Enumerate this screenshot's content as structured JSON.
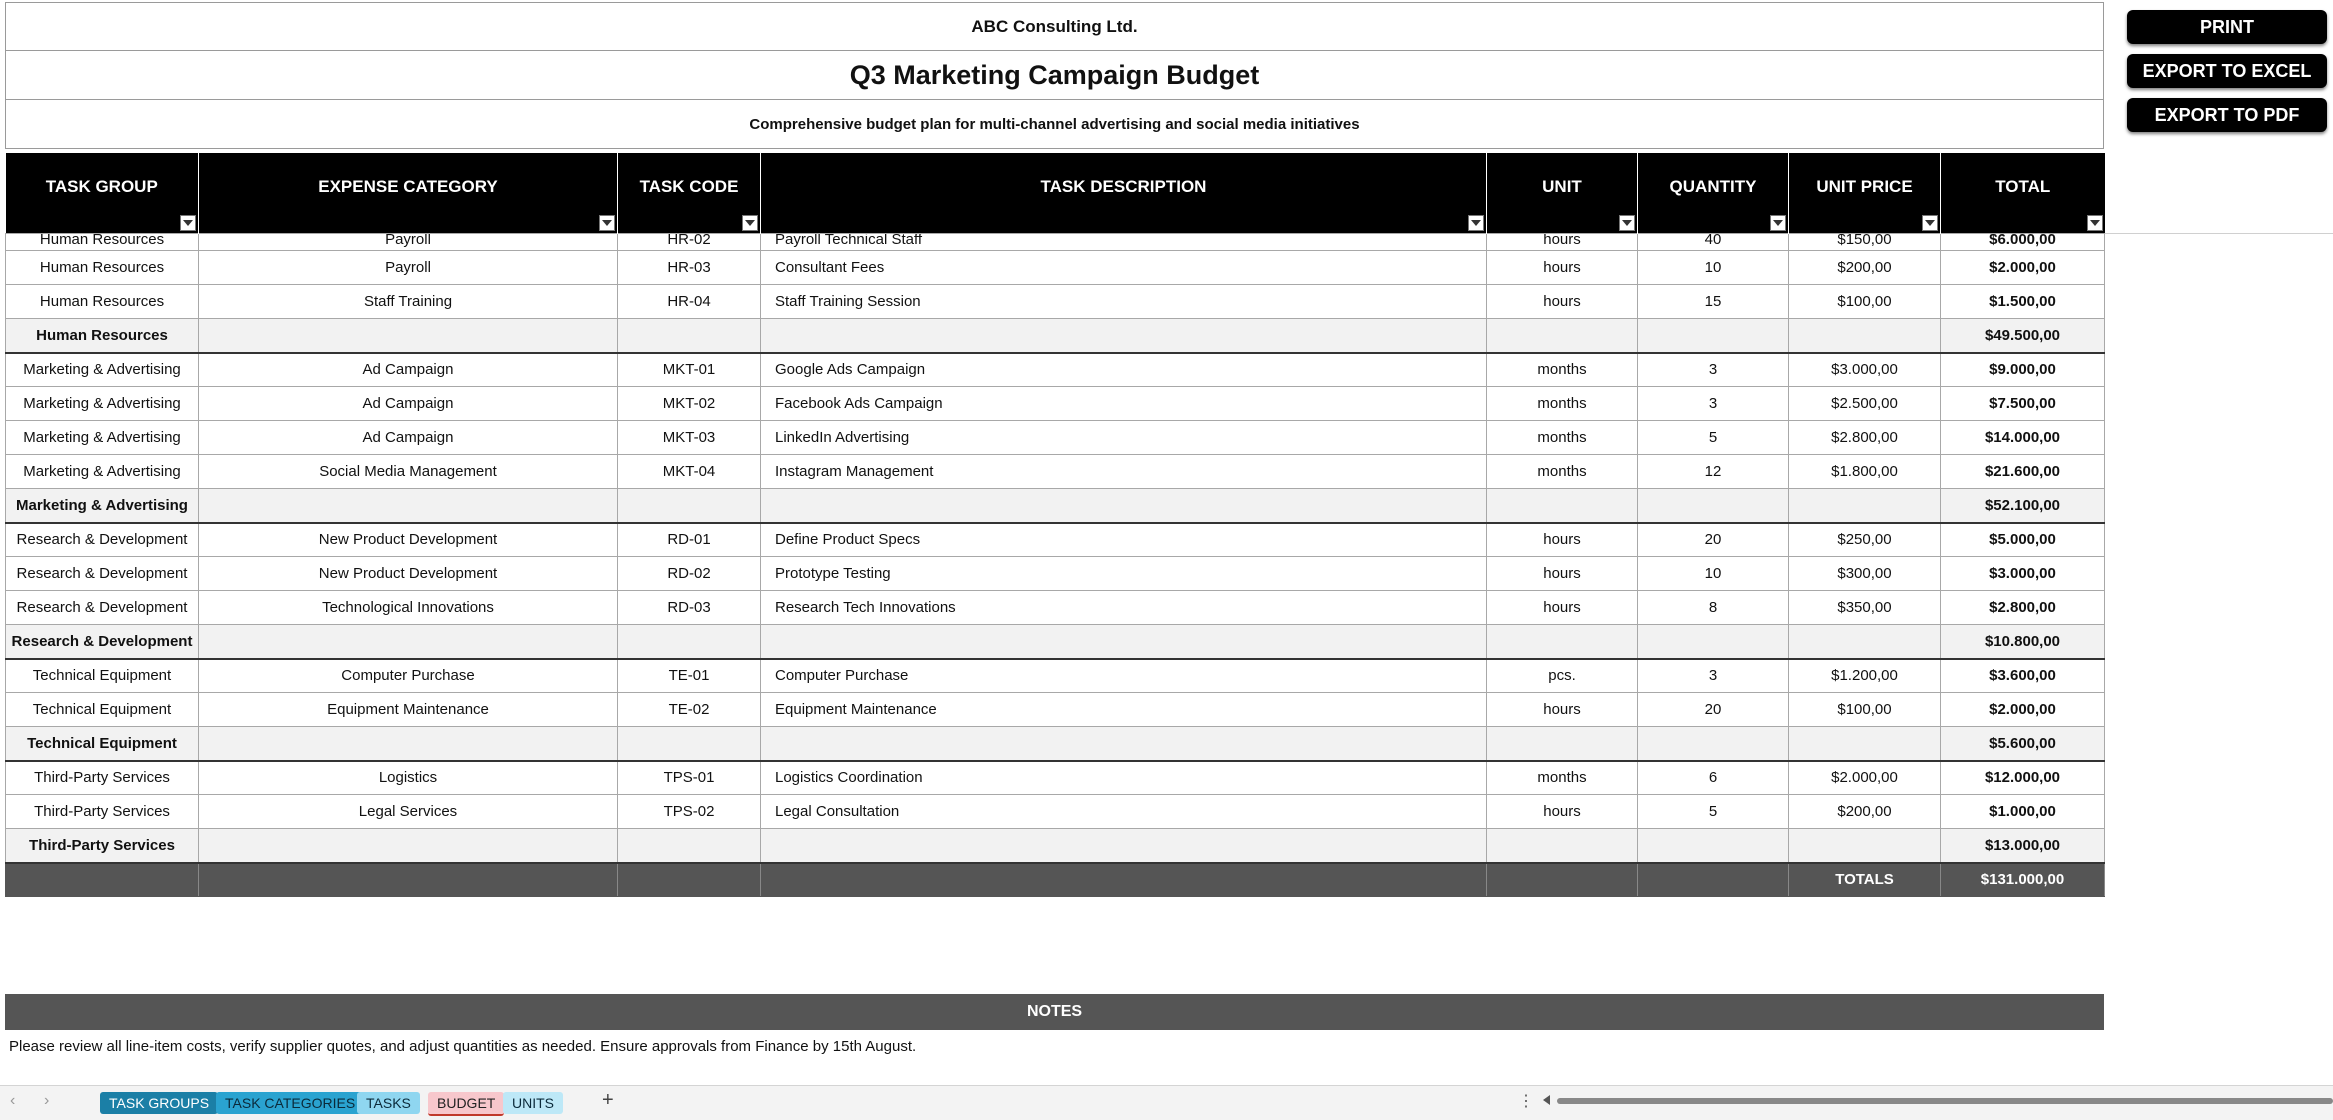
{
  "header": {
    "company": "ABC Consulting Ltd.",
    "title": "Q3 Marketing Campaign Budget",
    "subtitle": "Comprehensive budget plan for multi-channel advertising and social media initiatives"
  },
  "actions": {
    "print": "PRINT",
    "export_excel": "EXPORT TO EXCEL",
    "export_pdf": "EXPORT TO PDF"
  },
  "columns": [
    "TASK GROUP",
    "EXPENSE CATEGORY",
    "TASK CODE",
    "TASK DESCRIPTION",
    "UNIT",
    "QUANTITY",
    "UNIT PRICE",
    "TOTAL"
  ],
  "rows": [
    {
      "group": "Human Resources",
      "category": "Payroll",
      "code": "HR-02",
      "desc": "Payroll Technical Staff",
      "unit": "hours",
      "qty": "40",
      "price": "$150,00",
      "total": "$6.000,00"
    },
    {
      "group": "Human Resources",
      "category": "Payroll",
      "code": "HR-03",
      "desc": "Consultant Fees",
      "unit": "hours",
      "qty": "10",
      "price": "$200,00",
      "total": "$2.000,00"
    },
    {
      "group": "Human Resources",
      "category": "Staff Training",
      "code": "HR-04",
      "desc": "Staff Training Session",
      "unit": "hours",
      "qty": "15",
      "price": "$100,00",
      "total": "$1.500,00"
    },
    {
      "subtotal": true,
      "group": "Human Resources",
      "total": "$49.500,00"
    },
    {
      "group": "Marketing & Advertising",
      "category": "Ad Campaign",
      "code": "MKT-01",
      "desc": "Google Ads Campaign",
      "unit": "months",
      "qty": "3",
      "price": "$3.000,00",
      "total": "$9.000,00"
    },
    {
      "group": "Marketing & Advertising",
      "category": "Ad Campaign",
      "code": "MKT-02",
      "desc": "Facebook Ads Campaign",
      "unit": "months",
      "qty": "3",
      "price": "$2.500,00",
      "total": "$7.500,00"
    },
    {
      "group": "Marketing & Advertising",
      "category": "Ad Campaign",
      "code": "MKT-03",
      "desc": "LinkedIn Advertising",
      "unit": "months",
      "qty": "5",
      "price": "$2.800,00",
      "total": "$14.000,00"
    },
    {
      "group": "Marketing & Advertising",
      "category": "Social Media Management",
      "code": "MKT-04",
      "desc": "Instagram Management",
      "unit": "months",
      "qty": "12",
      "price": "$1.800,00",
      "total": "$21.600,00"
    },
    {
      "subtotal": true,
      "group": "Marketing & Advertising",
      "total": "$52.100,00"
    },
    {
      "group": "Research & Development",
      "category": "New Product Development",
      "code": "RD-01",
      "desc": "Define Product Specs",
      "unit": "hours",
      "qty": "20",
      "price": "$250,00",
      "total": "$5.000,00"
    },
    {
      "group": "Research & Development",
      "category": "New Product Development",
      "code": "RD-02",
      "desc": "Prototype Testing",
      "unit": "hours",
      "qty": "10",
      "price": "$300,00",
      "total": "$3.000,00"
    },
    {
      "group": "Research & Development",
      "category": "Technological Innovations",
      "code": "RD-03",
      "desc": "Research Tech Innovations",
      "unit": "hours",
      "qty": "8",
      "price": "$350,00",
      "total": "$2.800,00"
    },
    {
      "subtotal": true,
      "group": "Research & Development",
      "total": "$10.800,00"
    },
    {
      "group": "Technical Equipment",
      "category": "Computer Purchase",
      "code": "TE-01",
      "desc": "Computer Purchase",
      "unit": "pcs.",
      "qty": "3",
      "price": "$1.200,00",
      "total": "$3.600,00"
    },
    {
      "group": "Technical Equipment",
      "category": "Equipment Maintenance",
      "code": "TE-02",
      "desc": "Equipment Maintenance",
      "unit": "hours",
      "qty": "20",
      "price": "$100,00",
      "total": "$2.000,00"
    },
    {
      "subtotal": true,
      "group": "Technical Equipment",
      "total": "$5.600,00"
    },
    {
      "group": "Third-Party Services",
      "category": "Logistics",
      "code": "TPS-01",
      "desc": "Logistics Coordination",
      "unit": "months",
      "qty": "6",
      "price": "$2.000,00",
      "total": "$12.000,00"
    },
    {
      "group": "Third-Party Services",
      "category": "Legal Services",
      "code": "TPS-02",
      "desc": "Legal Consultation",
      "unit": "hours",
      "qty": "5",
      "price": "$200,00",
      "total": "$1.000,00"
    },
    {
      "subtotal": true,
      "group": "Third-Party Services",
      "total": "$13.000,00"
    }
  ],
  "grand_total": {
    "label": "TOTALS",
    "value": "$131.000,00"
  },
  "notes": {
    "title": "NOTES",
    "text": "Please review all line-item costs, verify supplier quotes, and adjust quantities as needed. Ensure approvals from Finance by 15th August."
  },
  "tabs": [
    {
      "label": "TASK GROUPS",
      "bg": "#1b7fa6",
      "color": "#ffffff"
    },
    {
      "label": "TASK CATEGORIES",
      "bg": "#2aa3d0",
      "color": "#0b2a3a"
    },
    {
      "label": "TASKS",
      "bg": "#8fd6f0",
      "color": "#0b2a3a"
    },
    {
      "label": "BUDGET",
      "bg": "#f7c7cc",
      "color": "#222222",
      "active": true
    },
    {
      "label": "UNITS",
      "bg": "#bde8f7",
      "color": "#0b2a3a"
    }
  ],
  "colors": {
    "header_bg": "#000000",
    "subtotal_bg": "#f2f2f2",
    "grand_bg": "#555555"
  }
}
